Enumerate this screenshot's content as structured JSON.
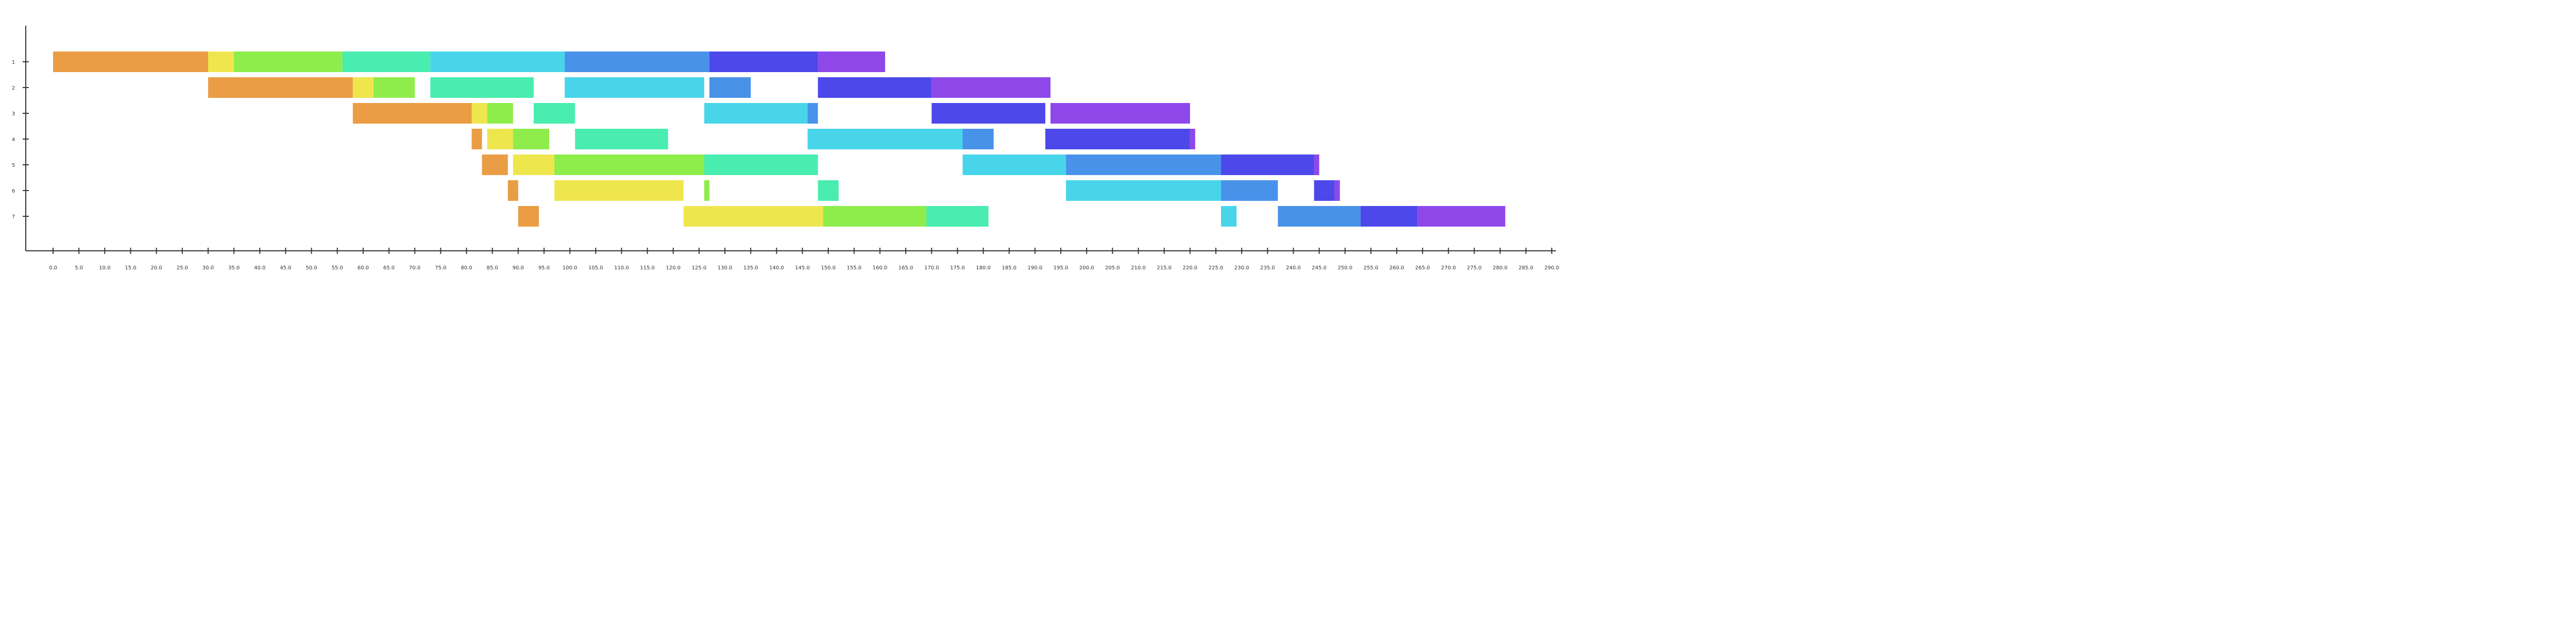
{
  "chart_data": {
    "type": "bar",
    "orientation": "horizontal-stacked-gantt",
    "title": "",
    "xlabel": "",
    "ylabel": "",
    "xlim": [
      0,
      290
    ],
    "ylim": [
      0.5,
      8
    ],
    "grid": false,
    "legend": "none",
    "x_ticks": [
      "0.0",
      "5.0",
      "10.0",
      "15.0",
      "20.0",
      "25.0",
      "30.0",
      "35.0",
      "40.0",
      "45.0",
      "50.0",
      "55.0",
      "60.0",
      "65.0",
      "70.0",
      "75.0",
      "80.0",
      "85.0",
      "90.0",
      "95.0",
      "100.0",
      "105.0",
      "110.0",
      "115.0",
      "120.0",
      "125.0",
      "130.0",
      "135.0",
      "140.0",
      "145.0",
      "150.0",
      "155.0",
      "160.0",
      "165.0",
      "170.0",
      "175.0",
      "180.0",
      "185.0",
      "190.0",
      "195.0",
      "200.0",
      "205.0",
      "210.0",
      "215.0",
      "220.0",
      "225.0",
      "230.0",
      "235.0",
      "240.0",
      "245.0",
      "250.0",
      "255.0",
      "260.0",
      "265.0",
      "270.0",
      "275.0",
      "280.0",
      "285.0",
      "290.0"
    ],
    "y_ticks": [
      "1",
      "2",
      "3",
      "4",
      "5",
      "6",
      "7"
    ],
    "colors": [
      "#ea9d44",
      "#efe64e",
      "#8eed4b",
      "#48edaf",
      "#48d5ea",
      "#4892ea",
      "#4c48ea",
      "#8e48ea"
    ],
    "rows": [
      {
        "y": 1,
        "segments": [
          [
            0,
            30,
            0
          ],
          [
            30,
            35,
            1
          ],
          [
            35,
            56,
            2
          ],
          [
            56,
            73,
            3
          ],
          [
            73,
            99,
            4
          ],
          [
            99,
            127,
            5
          ],
          [
            127,
            148,
            6
          ],
          [
            148,
            161,
            7
          ]
        ]
      },
      {
        "y": 2,
        "segments": [
          [
            30,
            58,
            0
          ],
          [
            58,
            62,
            1
          ],
          [
            62,
            70,
            2
          ],
          [
            73,
            93,
            3
          ],
          [
            99,
            126,
            4
          ],
          [
            127,
            135,
            5
          ],
          [
            148,
            170,
            6
          ],
          [
            170,
            193,
            7
          ]
        ]
      },
      {
        "y": 3,
        "segments": [
          [
            58,
            81,
            0
          ],
          [
            81,
            84,
            1
          ],
          [
            84,
            89,
            2
          ],
          [
            93,
            101,
            3
          ],
          [
            126,
            146,
            4
          ],
          [
            146,
            148,
            5
          ],
          [
            170,
            192,
            6
          ],
          [
            193,
            220,
            7
          ]
        ]
      },
      {
        "y": 4,
        "segments": [
          [
            81,
            83,
            0
          ],
          [
            84,
            89,
            1
          ],
          [
            89,
            96,
            2
          ],
          [
            101,
            119,
            3
          ],
          [
            146,
            176,
            4
          ],
          [
            176,
            182,
            5
          ],
          [
            192,
            220,
            6
          ],
          [
            220,
            221,
            7
          ]
        ]
      },
      {
        "y": 5,
        "segments": [
          [
            83,
            88,
            0
          ],
          [
            89,
            97,
            1
          ],
          [
            97,
            126,
            2
          ],
          [
            126,
            148,
            3
          ],
          [
            176,
            196,
            4
          ],
          [
            196,
            226,
            5
          ],
          [
            226,
            244,
            6
          ],
          [
            244,
            245,
            7
          ]
        ]
      },
      {
        "y": 6,
        "segments": [
          [
            88,
            90,
            0
          ],
          [
            97,
            122,
            1
          ],
          [
            126,
            127,
            2
          ],
          [
            148,
            152,
            3
          ],
          [
            196,
            226,
            4
          ],
          [
            226,
            237,
            5
          ],
          [
            244,
            248,
            6
          ],
          [
            248,
            249,
            7
          ]
        ]
      },
      {
        "y": 7,
        "segments": [
          [
            90,
            94,
            0
          ],
          [
            122,
            149,
            1
          ],
          [
            149,
            169,
            2
          ],
          [
            169,
            181,
            3
          ],
          [
            226,
            229,
            4
          ],
          [
            237,
            253,
            5
          ],
          [
            253,
            264,
            6
          ],
          [
            264,
            281,
            7
          ]
        ]
      }
    ]
  }
}
